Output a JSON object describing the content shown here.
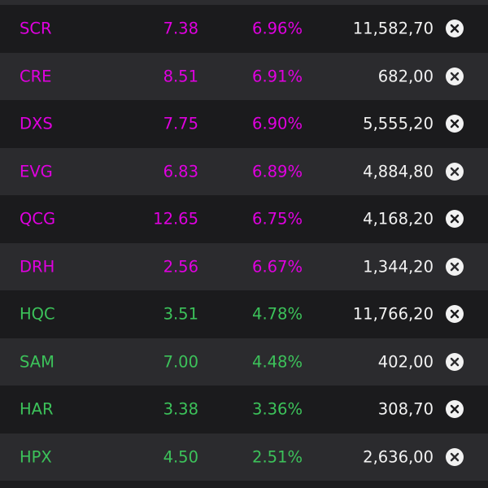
{
  "colors": {
    "up_strong": "#e000e0",
    "up": "#3cc25a",
    "text": "#f2f2f2",
    "row_dark": "#1b1b1d",
    "row_light": "#2b2b2e"
  },
  "rows": [
    {
      "symbol": "SCR",
      "price": "7.38",
      "change": "6.96%",
      "volume": "11,582,70",
      "color": "#e000e0",
      "icon": "close-circle-icon"
    },
    {
      "symbol": "CRE",
      "price": "8.51",
      "change": "6.91%",
      "volume": "682,00",
      "color": "#e000e0",
      "icon": "close-circle-icon"
    },
    {
      "symbol": "DXS",
      "price": "7.75",
      "change": "6.90%",
      "volume": "5,555,20",
      "color": "#e000e0",
      "icon": "close-circle-icon"
    },
    {
      "symbol": "EVG",
      "price": "6.83",
      "change": "6.89%",
      "volume": "4,884,80",
      "color": "#e000e0",
      "icon": "close-circle-icon"
    },
    {
      "symbol": "QCG",
      "price": "12.65",
      "change": "6.75%",
      "volume": "4,168,20",
      "color": "#e000e0",
      "icon": "close-circle-icon"
    },
    {
      "symbol": "DRH",
      "price": "2.56",
      "change": "6.67%",
      "volume": "1,344,20",
      "color": "#e000e0",
      "icon": "close-circle-icon"
    },
    {
      "symbol": "HQC",
      "price": "3.51",
      "change": "4.78%",
      "volume": "11,766,20",
      "color": "#3cc25a",
      "icon": "close-circle-icon"
    },
    {
      "symbol": "SAM",
      "price": "7.00",
      "change": "4.48%",
      "volume": "402,00",
      "color": "#3cc25a",
      "icon": "close-circle-icon"
    },
    {
      "symbol": "HAR",
      "price": "3.38",
      "change": "3.36%",
      "volume": "308,70",
      "color": "#3cc25a",
      "icon": "close-circle-icon"
    },
    {
      "symbol": "HPX",
      "price": "4.50",
      "change": "2.51%",
      "volume": "2,636,00",
      "color": "#3cc25a",
      "icon": "close-circle-icon"
    }
  ]
}
